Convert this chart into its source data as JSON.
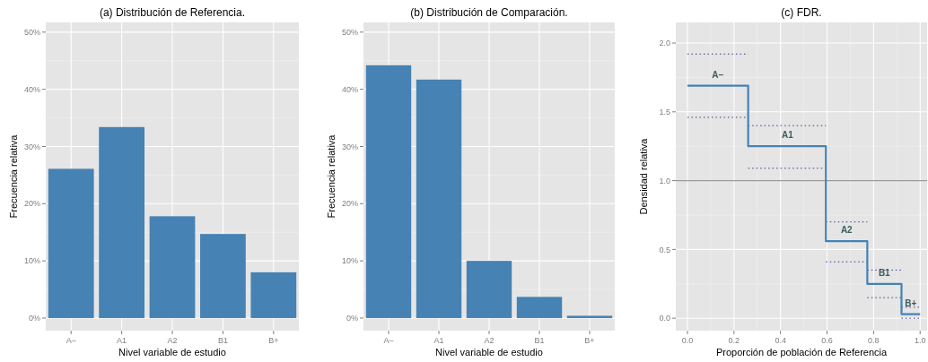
{
  "chart_data": [
    {
      "type": "bar",
      "title": "(a) Distribución de Referencia.",
      "xlabel": "Nivel variable de estudio",
      "ylabel": "Frecuencia relativa",
      "categories": [
        "A–",
        "A1",
        "A2",
        "B1",
        "B+"
      ],
      "values": [
        26.1,
        33.4,
        17.8,
        14.7,
        8.0
      ],
      "color": "#4682b4",
      "ylim": [
        -2.2,
        51.7
      ],
      "yticks": [
        {
          "value": 0,
          "label": "0%"
        },
        {
          "value": 10,
          "label": "10%"
        },
        {
          "value": 20,
          "label": "20%"
        },
        {
          "value": 30,
          "label": "30%"
        },
        {
          "value": 40,
          "label": "40%"
        },
        {
          "value": 50,
          "label": "50%"
        }
      ],
      "grid": true
    },
    {
      "type": "bar",
      "title": "(b) Distribución de Comparación.",
      "xlabel": "Nivel variable de estudio",
      "ylabel": "Frecuencia relativa",
      "categories": [
        "A–",
        "A1",
        "A2",
        "B1",
        "B+"
      ],
      "values": [
        44.2,
        41.7,
        10.0,
        3.7,
        0.4
      ],
      "color": "#4682b4",
      "ylim": [
        -2.2,
        51.7
      ],
      "yticks": [
        {
          "value": 0,
          "label": "0%"
        },
        {
          "value": 10,
          "label": "10%"
        },
        {
          "value": 20,
          "label": "20%"
        },
        {
          "value": 30,
          "label": "30%"
        },
        {
          "value": 40,
          "label": "40%"
        },
        {
          "value": 50,
          "label": "50%"
        }
      ],
      "grid": true
    },
    {
      "type": "step",
      "title": "(c) FDR.",
      "xlabel": "Proporción de población de Referencia",
      "ylabel": "Densidad relativa",
      "x": [
        0,
        0.261,
        0.595,
        0.773,
        0.92,
        1.0
      ],
      "series": [
        {
          "color": "#3a3a8c",
          "line_style": "dotted",
          "values": [
            1.92,
            1.4,
            0.7,
            0.35,
            0.08,
            0.08
          ]
        },
        {
          "color": "#3a3a8c",
          "line_style": "dotted",
          "values": [
            1.46,
            1.09,
            0.41,
            0.15,
            0.0,
            0.0
          ]
        },
        {
          "color": "#4682b4",
          "values": [
            1.69,
            1.25,
            0.56,
            0.25,
            0.03,
            0.03
          ]
        }
      ],
      "ref_lines": [
        {
          "axis": "y",
          "value": 1.0,
          "color": "#999999"
        }
      ],
      "annotations": [
        {
          "text": "A–",
          "x": 0.13,
          "y": 1.69
        },
        {
          "text": "A1",
          "x": 0.43,
          "y": 1.25
        },
        {
          "text": "A2",
          "x": 0.684,
          "y": 0.56
        },
        {
          "text": "B1",
          "x": 0.846,
          "y": 0.25
        },
        {
          "text": "B+",
          "x": 0.96,
          "y": 0.03
        }
      ],
      "xlim": [
        -0.05,
        1.03
      ],
      "xticks": [
        {
          "value": 0,
          "label": "0.0"
        },
        {
          "value": 0.2,
          "label": "0.2"
        },
        {
          "value": 0.4,
          "label": "0.4"
        },
        {
          "value": 0.6,
          "label": "0.6"
        },
        {
          "value": 0.8,
          "label": "0.8"
        },
        {
          "value": 1,
          "label": "1.0"
        }
      ],
      "ylim": [
        -0.09,
        2.15
      ],
      "yticks": [
        {
          "value": 0,
          "label": "0.0"
        },
        {
          "value": 0.5,
          "label": "0.5"
        },
        {
          "value": 1,
          "label": "1.0"
        },
        {
          "value": 1.5,
          "label": "1.5"
        },
        {
          "value": 2,
          "label": "2.0"
        }
      ],
      "grid": true
    }
  ]
}
